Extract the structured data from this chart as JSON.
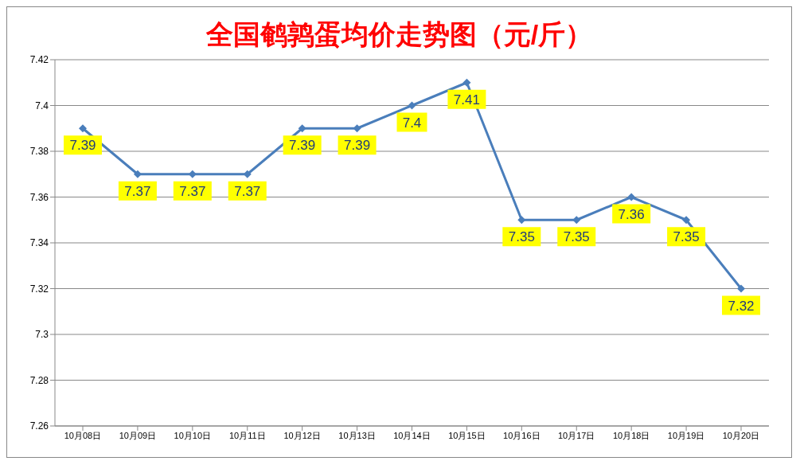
{
  "chart_data": {
    "type": "line",
    "title": "全国鹌鹑蛋均价走势图（元/斤）",
    "categories": [
      "10月08日",
      "10月09日",
      "10月10日",
      "10月11日",
      "10月12日",
      "10月13日",
      "10月14日",
      "10月15日",
      "10月16日",
      "10月17日",
      "10月18日",
      "10月19日",
      "10月20日"
    ],
    "series": [
      {
        "color": "#4a7ebb",
        "values": [
          7.39,
          7.37,
          7.37,
          7.37,
          7.39,
          7.39,
          7.4,
          7.41,
          7.35,
          7.35,
          7.36,
          7.35,
          7.32
        ]
      }
    ],
    "ylim": [
      7.26,
      7.42
    ],
    "yticks": [
      7.26,
      7.28,
      7.3,
      7.32,
      7.34,
      7.36,
      7.38,
      7.4,
      7.42
    ],
    "grid": "y",
    "marker": "diamond",
    "line_style": "solid",
    "data_labels": true,
    "legend": false
  }
}
